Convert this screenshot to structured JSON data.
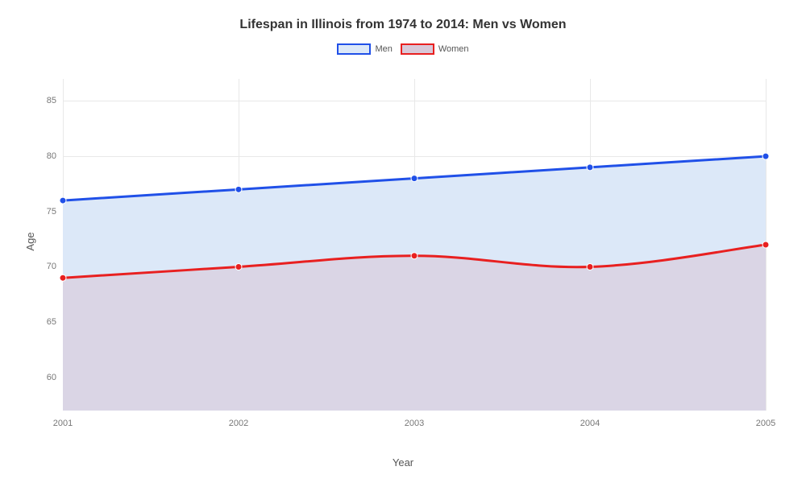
{
  "chart": {
    "type": "area-line",
    "title": "Lifespan in Illinois from 1974 to 2014: Men vs Women",
    "title_fontsize": 16,
    "title_color": "#333333",
    "xlabel": "Year",
    "ylabel": "Age",
    "label_fontsize": 13,
    "label_color": "#555555",
    "tick_fontsize": 11,
    "tick_color": "#777777",
    "background_color": "#ffffff",
    "grid_color": "#e8e8e8",
    "xlim": [
      2001,
      2005
    ],
    "ylim": [
      57,
      87
    ],
    "yticks": [
      60,
      65,
      70,
      75,
      80,
      85
    ],
    "xticks": [
      2001,
      2002,
      2003,
      2004,
      2005
    ],
    "line_width": 3,
    "marker_radius": 4,
    "marker_style": "circle",
    "legend": {
      "position": "top-center",
      "swatch_width": 42,
      "swatch_height": 14
    },
    "series": [
      {
        "name": "Men",
        "color": "#2050e8",
        "fill_color": "#dce8f8",
        "fill_opacity": 1,
        "x": [
          2001,
          2002,
          2003,
          2004,
          2005
        ],
        "y": [
          76,
          77,
          78,
          79,
          80
        ]
      },
      {
        "name": "Women",
        "color": "#e82020",
        "fill_color": "#d8c8d8",
        "fill_opacity": 0.6,
        "x": [
          2001,
          2002,
          2003,
          2004,
          2005
        ],
        "y": [
          69,
          70,
          71,
          70,
          72
        ]
      }
    ]
  }
}
